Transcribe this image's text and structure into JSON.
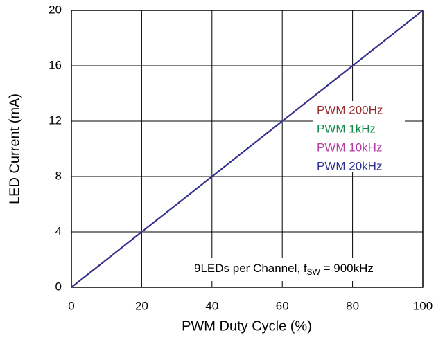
{
  "chart_data": {
    "type": "line",
    "xlabel": "PWM Duty Cycle (%)",
    "ylabel": "LED Current (mA)",
    "x": [
      0,
      10,
      20,
      30,
      40,
      50,
      60,
      70,
      80,
      90,
      100
    ],
    "series": [
      {
        "name": "PWM 200Hz",
        "color": "#9b2d30",
        "values": [
          0,
          2,
          4,
          6,
          8,
          10,
          12,
          14,
          16,
          18,
          20
        ]
      },
      {
        "name": "PWM 1kHz",
        "color": "#138a4c",
        "values": [
          0,
          2,
          4,
          6,
          8,
          10,
          12,
          14,
          16,
          18,
          20
        ]
      },
      {
        "name": "PWM 10kHz",
        "color": "#b23da3",
        "values": [
          0,
          2,
          4,
          6,
          8,
          10,
          12,
          14,
          16,
          18,
          20
        ]
      },
      {
        "name": "PWM 20kHz",
        "color": "#2e3192",
        "values": [
          0,
          2,
          4,
          6,
          8,
          10,
          12,
          14,
          16,
          18,
          20
        ]
      }
    ],
    "annotation": [
      "9LEDs per Channel, f",
      "SW",
      " = 900kHz"
    ],
    "xlim": [
      0,
      100
    ],
    "xticks": [
      0,
      20,
      40,
      60,
      80,
      100
    ],
    "ylim": [
      0,
      20
    ],
    "yticks": [
      0,
      4,
      8,
      12,
      16,
      20
    ],
    "grid": true
  }
}
